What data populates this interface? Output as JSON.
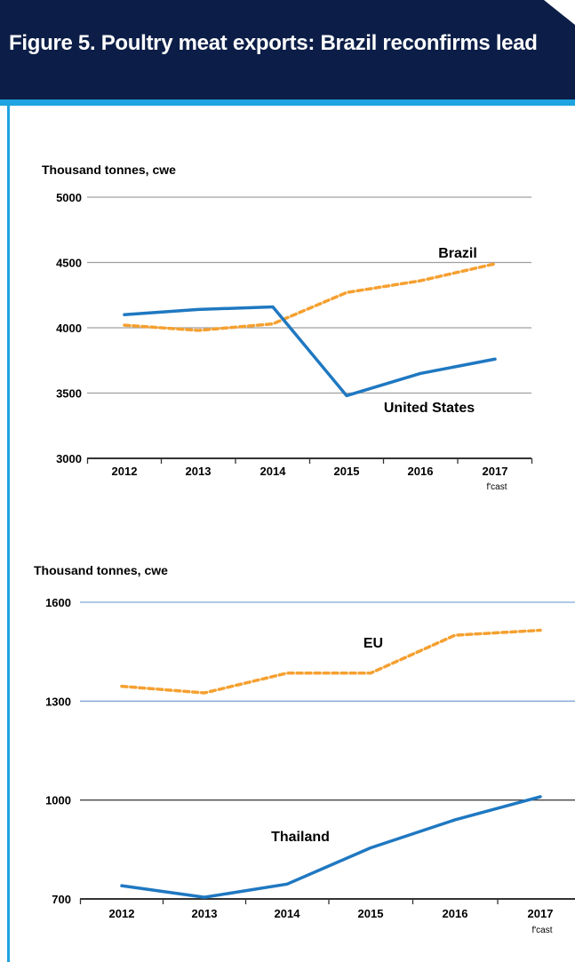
{
  "header": {
    "title": "Figure 5. Poultry meat exports: Brazil reconfirms lead"
  },
  "colors": {
    "header_bg": "#0c1e47",
    "accent": "#1fa3e1",
    "solid_series": "#1f78c1",
    "dashed_series": "#f5a030"
  },
  "chart_data": [
    {
      "type": "line",
      "ylabel": "Thousand tonnes, cwe",
      "categories": [
        "2012",
        "2013",
        "2014",
        "2015",
        "2016",
        "2017"
      ],
      "category_sublabels": [
        "",
        "",
        "",
        "",
        "",
        "f'cast"
      ],
      "yticks": [
        3000,
        3500,
        4000,
        4500,
        5000
      ],
      "ylim": [
        3000,
        5000
      ],
      "grid": true,
      "series": [
        {
          "name": "Brazil",
          "style": "dashed",
          "values": [
            4020,
            3980,
            4030,
            4270,
            4360,
            4490
          ]
        },
        {
          "name": "United States",
          "style": "solid",
          "values": [
            4100,
            4140,
            4160,
            3480,
            3650,
            3760
          ]
        }
      ]
    },
    {
      "type": "line",
      "ylabel": "Thousand tonnes, cwe",
      "categories": [
        "2012",
        "2013",
        "2014",
        "2015",
        "2016",
        "2017"
      ],
      "category_sublabels": [
        "",
        "",
        "",
        "",
        "",
        "f'cast"
      ],
      "yticks": [
        700,
        1000,
        1300,
        1600
      ],
      "ylim": [
        700,
        1600
      ],
      "grid": true,
      "series": [
        {
          "name": "EU",
          "style": "dashed",
          "values": [
            1345,
            1325,
            1385,
            1385,
            1500,
            1515
          ]
        },
        {
          "name": "Thailand",
          "style": "solid",
          "values": [
            740,
            705,
            745,
            855,
            940,
            1010
          ]
        }
      ]
    }
  ]
}
